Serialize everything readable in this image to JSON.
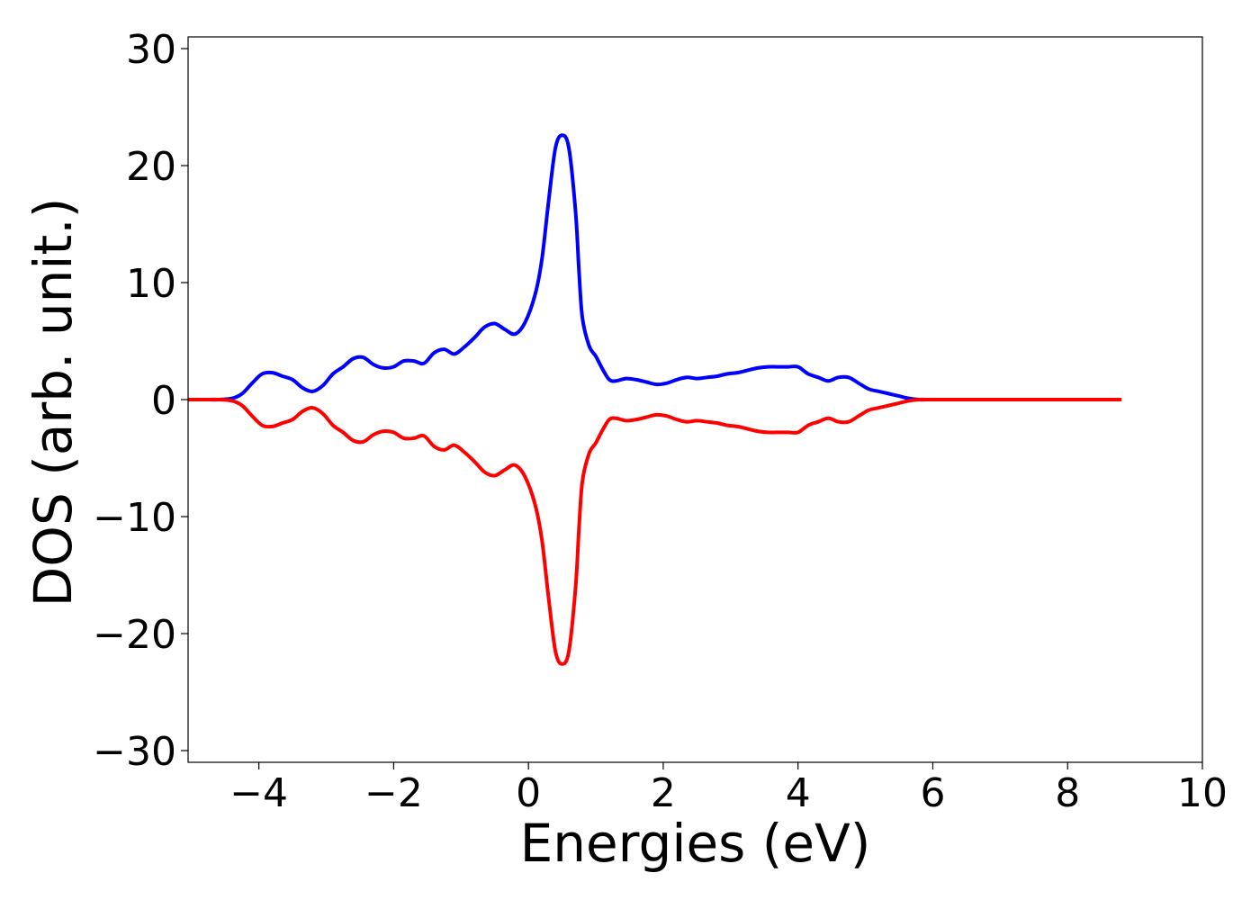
{
  "chart_data": {
    "type": "line",
    "title": "",
    "xlabel": "Energies (eV)",
    "ylabel": "DOS (arb. unit.)",
    "xlim": [
      -5.05,
      10
    ],
    "ylim": [
      -31,
      31
    ],
    "x_ticks": [
      -4,
      -2,
      0,
      2,
      4,
      6,
      8,
      10
    ],
    "y_ticks": [
      -30,
      -20,
      -10,
      0,
      10,
      20,
      30
    ],
    "x_tick_labels": [
      "−4",
      "−2",
      "0",
      "2",
      "4",
      "6",
      "8",
      "10"
    ],
    "y_tick_labels": [
      "−30",
      "−20",
      "−10",
      "0",
      "10",
      "20",
      "30"
    ],
    "grid": false,
    "legend": "none",
    "x": [
      -5.05,
      -4.8,
      -4.6,
      -4.4,
      -4.25,
      -4.1,
      -3.95,
      -3.8,
      -3.65,
      -3.5,
      -3.35,
      -3.2,
      -3.05,
      -2.9,
      -2.75,
      -2.6,
      -2.45,
      -2.3,
      -2.15,
      -2.0,
      -1.85,
      -1.7,
      -1.55,
      -1.4,
      -1.25,
      -1.1,
      -0.95,
      -0.8,
      -0.65,
      -0.5,
      -0.35,
      -0.2,
      -0.05,
      0.1,
      0.2,
      0.3,
      0.4,
      0.5,
      0.6,
      0.7,
      0.75,
      0.8,
      0.9,
      1.0,
      1.1,
      1.2,
      1.3,
      1.45,
      1.6,
      1.75,
      1.9,
      2.05,
      2.2,
      2.35,
      2.5,
      2.65,
      2.8,
      2.95,
      3.1,
      3.25,
      3.4,
      3.55,
      3.7,
      3.85,
      4.0,
      4.15,
      4.3,
      4.45,
      4.6,
      4.75,
      4.9,
      5.05,
      5.2,
      5.35,
      5.5,
      5.65,
      5.8,
      5.95,
      6.1,
      6.3,
      6.5,
      7.0,
      7.5,
      8.0,
      8.5,
      8.8
    ],
    "series": [
      {
        "color": "#0000ff",
        "values": [
          0.0,
          0.0,
          0.0,
          0.1,
          0.5,
          1.4,
          2.2,
          2.3,
          2.0,
          1.7,
          1.0,
          0.7,
          1.2,
          2.2,
          2.8,
          3.5,
          3.6,
          3.0,
          2.7,
          2.8,
          3.3,
          3.3,
          3.1,
          4.0,
          4.3,
          3.9,
          4.5,
          5.3,
          6.2,
          6.5,
          6.0,
          5.6,
          6.6,
          9.0,
          12.0,
          17.0,
          21.5,
          22.6,
          21.5,
          16.0,
          11.0,
          7.0,
          4.6,
          3.7,
          2.6,
          1.7,
          1.6,
          1.8,
          1.7,
          1.5,
          1.3,
          1.4,
          1.7,
          1.9,
          1.8,
          1.9,
          2.0,
          2.2,
          2.3,
          2.5,
          2.7,
          2.8,
          2.8,
          2.8,
          2.8,
          2.2,
          1.9,
          1.6,
          1.9,
          1.9,
          1.4,
          0.9,
          0.7,
          0.5,
          0.3,
          0.1,
          0.0,
          0.0,
          0.0,
          0.0,
          0.0,
          0.0,
          0.0,
          0.0,
          0.0,
          0.0
        ]
      },
      {
        "color": "#ff0000",
        "values": [
          0.0,
          0.0,
          0.0,
          -0.1,
          -0.5,
          -1.4,
          -2.2,
          -2.3,
          -2.0,
          -1.7,
          -1.0,
          -0.7,
          -1.2,
          -2.2,
          -2.8,
          -3.5,
          -3.6,
          -3.0,
          -2.7,
          -2.8,
          -3.3,
          -3.3,
          -3.1,
          -4.0,
          -4.3,
          -3.9,
          -4.5,
          -5.3,
          -6.2,
          -6.5,
          -6.0,
          -5.6,
          -6.6,
          -9.0,
          -12.0,
          -17.0,
          -21.5,
          -22.6,
          -21.5,
          -16.0,
          -11.0,
          -7.0,
          -4.6,
          -3.7,
          -2.6,
          -1.7,
          -1.6,
          -1.8,
          -1.7,
          -1.5,
          -1.3,
          -1.4,
          -1.7,
          -1.9,
          -1.8,
          -1.9,
          -2.0,
          -2.2,
          -2.3,
          -2.5,
          -2.7,
          -2.8,
          -2.8,
          -2.8,
          -2.8,
          -2.2,
          -1.9,
          -1.6,
          -1.9,
          -1.9,
          -1.4,
          -0.9,
          -0.7,
          -0.5,
          -0.3,
          -0.1,
          0.0,
          0.0,
          0.0,
          0.0,
          0.0,
          0.0,
          0.0,
          0.0,
          0.0,
          0.0
        ]
      }
    ]
  }
}
